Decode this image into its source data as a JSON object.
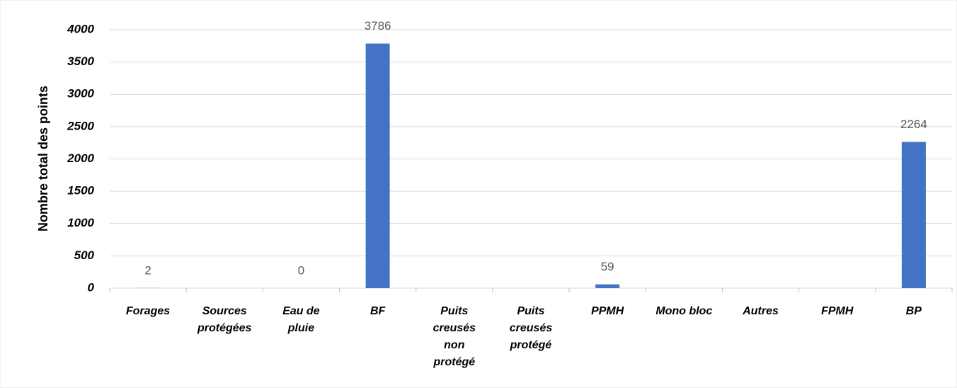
{
  "chart_data": {
    "type": "bar",
    "y_label": "Nombre total des points",
    "categories": [
      [
        "Forages"
      ],
      [
        "Sources",
        "protégées"
      ],
      [
        "Eau de",
        "pluie"
      ],
      [
        "BF"
      ],
      [
        "Puits",
        "creusés",
        "non",
        "protégé"
      ],
      [
        "Puits",
        "creusés",
        "protégé"
      ],
      [
        "PPMH"
      ],
      [
        "Mono bloc"
      ],
      [
        "Autres"
      ],
      [
        "FPMH"
      ],
      [
        "BP"
      ]
    ],
    "values": [
      2,
      null,
      0,
      3786,
      null,
      null,
      59,
      null,
      null,
      null,
      2264
    ],
    "color": "#4472c4",
    "ylim": [
      0,
      4000
    ],
    "yticks": [
      0,
      500,
      1000,
      1500,
      2000,
      2500,
      3000,
      3500,
      4000
    ],
    "grid": true
  }
}
